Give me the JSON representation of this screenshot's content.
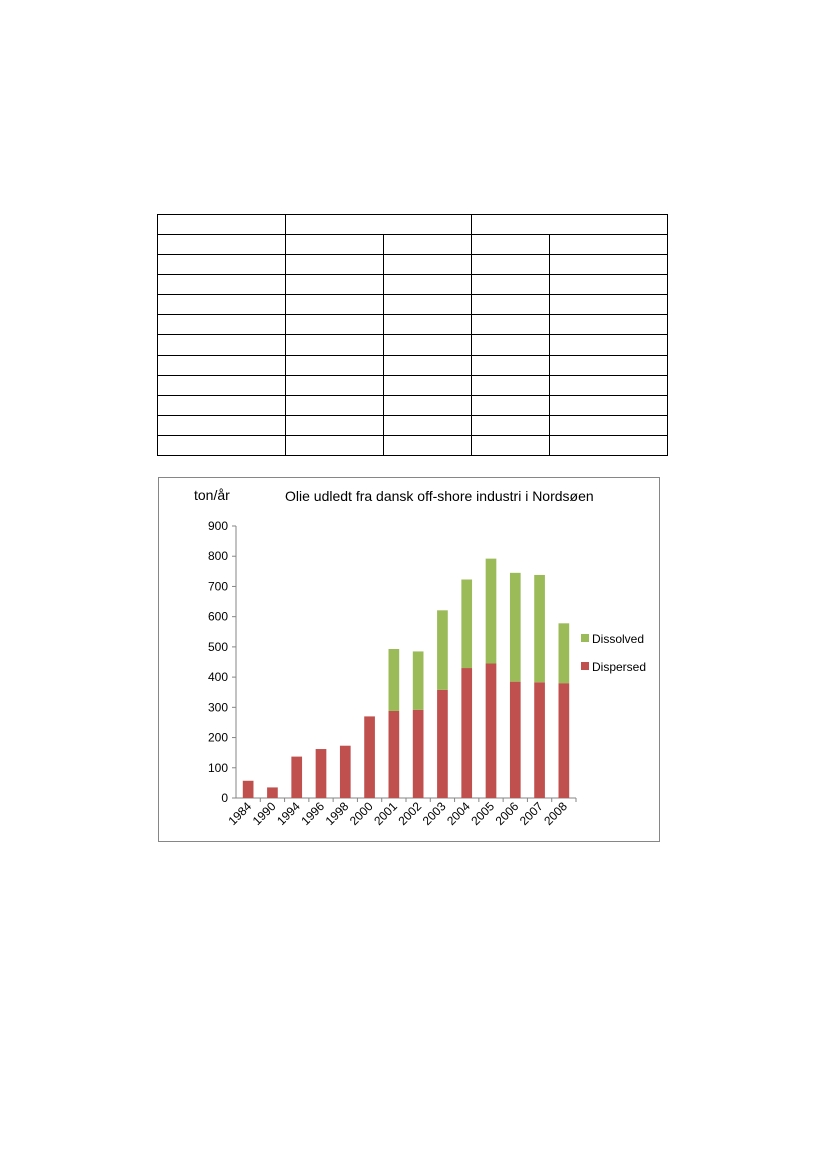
{
  "table": {
    "rows": 12,
    "header_row_1": [
      "",
      "",
      ""
    ],
    "body_columns": 5
  },
  "chart_data": {
    "type": "bar",
    "stacked": true,
    "title": "Olie udledt fra dansk off-shore industri i Nordsøen",
    "ylabel": "ton/år",
    "xlabel": "",
    "ylim": [
      0,
      900
    ],
    "yticks": [
      0,
      100,
      200,
      300,
      400,
      500,
      600,
      700,
      800,
      900
    ],
    "categories": [
      "1984",
      "1990",
      "1994",
      "1996",
      "1998",
      "2000",
      "2001",
      "2002",
      "2003",
      "2004",
      "2005",
      "2006",
      "2007",
      "2008"
    ],
    "series": [
      {
        "name": "Dispersed",
        "color": "#C0504D",
        "values": [
          57,
          35,
          137,
          162,
          173,
          270,
          288,
          292,
          358,
          430,
          445,
          385,
          383,
          380
        ]
      },
      {
        "name": "Dissolved",
        "color": "#9BBB59",
        "values": [
          0,
          0,
          0,
          0,
          0,
          0,
          205,
          193,
          263,
          293,
          347,
          360,
          355,
          198
        ]
      }
    ],
    "legend_position": "right",
    "grid": false
  }
}
